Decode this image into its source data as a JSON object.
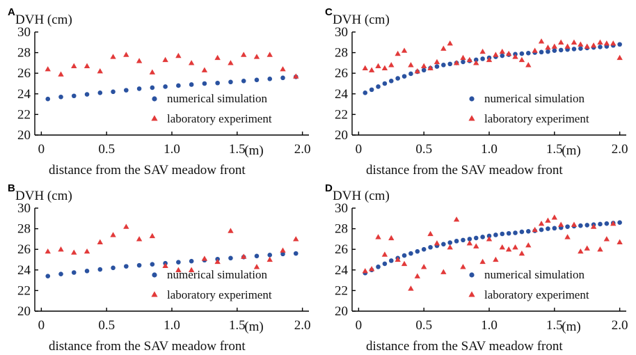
{
  "chart_data": [
    {
      "panel": "A",
      "type": "scatter",
      "ylabel": "DVH (cm)",
      "xlabel": "distance from the SAV meadow front",
      "x_unit": "(m)",
      "xlim": [
        -0.05,
        2.05
      ],
      "ylim": [
        20,
        30
      ],
      "xticks": [
        "0",
        "0.5",
        "1.0",
        "1.5",
        "2.0"
      ],
      "yticks": [
        "20",
        "22",
        "24",
        "26",
        "28",
        "30"
      ],
      "legend_position": "lower-right",
      "series": [
        {
          "name": "numerical simulation",
          "marker": "circle",
          "color": "#2a52a0",
          "x": [
            0.05,
            0.15,
            0.25,
            0.35,
            0.45,
            0.55,
            0.65,
            0.75,
            0.85,
            0.95,
            1.05,
            1.15,
            1.25,
            1.35,
            1.45,
            1.55,
            1.65,
            1.75,
            1.85,
            1.95
          ],
          "y": [
            23.5,
            23.7,
            23.8,
            23.95,
            24.1,
            24.2,
            24.35,
            24.5,
            24.6,
            24.7,
            24.8,
            24.9,
            25.0,
            25.05,
            25.15,
            25.25,
            25.35,
            25.45,
            25.55,
            25.65
          ]
        },
        {
          "name": "laboratory experiment",
          "marker": "triangle",
          "color": "#e23a3a",
          "x": [
            0.05,
            0.15,
            0.25,
            0.35,
            0.45,
            0.55,
            0.65,
            0.75,
            0.85,
            0.95,
            1.05,
            1.15,
            1.25,
            1.35,
            1.45,
            1.55,
            1.65,
            1.75,
            1.85,
            1.95
          ],
          "y": [
            26.4,
            25.9,
            26.7,
            26.7,
            26.2,
            27.6,
            27.8,
            27.2,
            26.1,
            27.3,
            27.7,
            27.0,
            26.3,
            27.5,
            27.0,
            27.8,
            27.6,
            27.8,
            26.4,
            25.7
          ]
        }
      ]
    },
    {
      "panel": "C",
      "type": "scatter",
      "ylabel": "DVH (cm)",
      "xlabel": "distance from the SAV meadow front",
      "x_unit": "(m)",
      "xlim": [
        -0.05,
        2.05
      ],
      "ylim": [
        20,
        30
      ],
      "xticks": [
        "0",
        "0.5",
        "1.0",
        "1.5",
        "2.0"
      ],
      "yticks": [
        "20",
        "22",
        "24",
        "26",
        "28",
        "30"
      ],
      "legend_position": "lower-right",
      "series": [
        {
          "name": "numerical simulation",
          "marker": "circle",
          "color": "#2a52a0",
          "x": [
            0.05,
            0.1,
            0.15,
            0.2,
            0.25,
            0.3,
            0.35,
            0.4,
            0.45,
            0.5,
            0.55,
            0.6,
            0.65,
            0.7,
            0.75,
            0.8,
            0.85,
            0.9,
            0.95,
            1.0,
            1.05,
            1.1,
            1.15,
            1.2,
            1.25,
            1.3,
            1.35,
            1.4,
            1.45,
            1.5,
            1.55,
            1.6,
            1.65,
            1.7,
            1.75,
            1.8,
            1.85,
            1.9,
            1.95,
            2.0
          ],
          "y": [
            24.1,
            24.4,
            24.7,
            25.0,
            25.25,
            25.5,
            25.7,
            25.95,
            26.15,
            26.3,
            26.5,
            26.65,
            26.8,
            26.9,
            27.0,
            27.1,
            27.2,
            27.3,
            27.4,
            27.5,
            27.6,
            27.7,
            27.8,
            27.85,
            27.9,
            27.95,
            28.0,
            28.05,
            28.1,
            28.2,
            28.25,
            28.3,
            28.35,
            28.4,
            28.45,
            28.5,
            28.55,
            28.6,
            28.7,
            28.8
          ]
        },
        {
          "name": "laboratory experiment",
          "marker": "triangle",
          "color": "#e23a3a",
          "x": [
            0.05,
            0.1,
            0.15,
            0.2,
            0.25,
            0.3,
            0.35,
            0.4,
            0.45,
            0.5,
            0.55,
            0.6,
            0.65,
            0.7,
            0.75,
            0.8,
            0.85,
            0.9,
            0.95,
            1.0,
            1.05,
            1.1,
            1.15,
            1.2,
            1.25,
            1.3,
            1.35,
            1.4,
            1.45,
            1.5,
            1.55,
            1.6,
            1.65,
            1.7,
            1.75,
            1.8,
            1.85,
            1.9,
            1.95,
            2.0
          ],
          "y": [
            26.5,
            26.3,
            26.7,
            26.5,
            26.8,
            27.9,
            28.2,
            26.8,
            26.2,
            26.7,
            26.5,
            27.1,
            28.4,
            28.9,
            27.0,
            27.5,
            27.3,
            27.0,
            28.1,
            27.3,
            27.8,
            28.1,
            27.9,
            27.6,
            27.3,
            26.8,
            28.2,
            29.1,
            28.5,
            28.6,
            29.0,
            28.6,
            29.0,
            28.8,
            28.6,
            28.7,
            29.0,
            28.9,
            28.9,
            27.5
          ]
        }
      ]
    },
    {
      "panel": "B",
      "type": "scatter",
      "ylabel": "DVH (cm)",
      "xlabel": "distance from the SAV meadow front",
      "x_unit": "(m)",
      "xlim": [
        -0.05,
        2.05
      ],
      "ylim": [
        20,
        30
      ],
      "xticks": [
        "0",
        "0.5",
        "1.0",
        "1.5",
        "2.0"
      ],
      "yticks": [
        "20",
        "22",
        "24",
        "26",
        "28",
        "30"
      ],
      "legend_position": "lower-right",
      "series": [
        {
          "name": "numerical simulation",
          "marker": "circle",
          "color": "#2a52a0",
          "x": [
            0.05,
            0.15,
            0.25,
            0.35,
            0.45,
            0.55,
            0.65,
            0.75,
            0.85,
            0.95,
            1.05,
            1.15,
            1.25,
            1.35,
            1.45,
            1.55,
            1.65,
            1.75,
            1.85,
            1.95
          ],
          "y": [
            23.4,
            23.6,
            23.75,
            23.9,
            24.05,
            24.2,
            24.35,
            24.45,
            24.55,
            24.65,
            24.75,
            24.85,
            24.95,
            25.05,
            25.15,
            25.25,
            25.35,
            25.45,
            25.55,
            25.6
          ]
        },
        {
          "name": "laboratory experiment",
          "marker": "triangle",
          "color": "#e23a3a",
          "x": [
            0.05,
            0.15,
            0.25,
            0.35,
            0.45,
            0.55,
            0.65,
            0.75,
            0.85,
            0.95,
            1.05,
            1.15,
            1.25,
            1.35,
            1.45,
            1.55,
            1.65,
            1.75,
            1.85,
            1.95
          ],
          "y": [
            25.8,
            26.0,
            25.7,
            25.8,
            26.7,
            27.4,
            28.2,
            27.0,
            27.3,
            24.4,
            24.0,
            24.0,
            25.1,
            24.8,
            27.8,
            25.3,
            24.3,
            25.0,
            25.9,
            27.0
          ]
        }
      ]
    },
    {
      "panel": "D",
      "type": "scatter",
      "ylabel": "DVH (cm)",
      "xlabel": "distance from the SAV meadow front",
      "x_unit": "(m)",
      "xlim": [
        -0.05,
        2.05
      ],
      "ylim": [
        20,
        30
      ],
      "xticks": [
        "0",
        "0.5",
        "1.0",
        "1.5",
        "2.0"
      ],
      "yticks": [
        "20",
        "22",
        "24",
        "26",
        "28",
        "30"
      ],
      "legend_position": "lower-right",
      "series": [
        {
          "name": "numerical simulation",
          "marker": "circle",
          "color": "#2a52a0",
          "x": [
            0.05,
            0.1,
            0.15,
            0.2,
            0.25,
            0.3,
            0.35,
            0.4,
            0.45,
            0.5,
            0.55,
            0.6,
            0.65,
            0.7,
            0.75,
            0.8,
            0.85,
            0.9,
            0.95,
            1.0,
            1.05,
            1.1,
            1.15,
            1.2,
            1.25,
            1.3,
            1.35,
            1.4,
            1.45,
            1.5,
            1.55,
            1.6,
            1.65,
            1.7,
            1.75,
            1.8,
            1.85,
            1.9,
            1.95,
            2.0
          ],
          "y": [
            23.7,
            24.0,
            24.3,
            24.6,
            24.9,
            25.15,
            25.4,
            25.6,
            25.8,
            26.0,
            26.2,
            26.35,
            26.5,
            26.65,
            26.8,
            26.9,
            27.0,
            27.1,
            27.2,
            27.3,
            27.4,
            27.5,
            27.55,
            27.6,
            27.7,
            27.75,
            27.8,
            27.9,
            28.0,
            28.05,
            28.1,
            28.2,
            28.25,
            28.3,
            28.35,
            28.4,
            28.45,
            28.5,
            28.55,
            28.6
          ]
        },
        {
          "name": "laboratory experiment",
          "marker": "triangle",
          "color": "#e23a3a",
          "x": [
            0.05,
            0.1,
            0.15,
            0.2,
            0.25,
            0.3,
            0.35,
            0.4,
            0.45,
            0.5,
            0.55,
            0.6,
            0.65,
            0.7,
            0.75,
            0.8,
            0.85,
            0.9,
            0.95,
            1.0,
            1.05,
            1.1,
            1.15,
            1.2,
            1.25,
            1.3,
            1.35,
            1.4,
            1.45,
            1.5,
            1.55,
            1.6,
            1.65,
            1.7,
            1.75,
            1.8,
            1.85,
            1.9,
            1.95,
            2.0
          ],
          "y": [
            23.9,
            24.1,
            27.2,
            25.5,
            27.1,
            25.0,
            24.6,
            22.2,
            23.4,
            24.3,
            27.5,
            26.6,
            23.8,
            26.2,
            28.9,
            24.3,
            26.6,
            26.3,
            24.8,
            27.0,
            25.0,
            26.2,
            26.0,
            26.2,
            25.6,
            26.4,
            27.9,
            28.5,
            28.8,
            29.1,
            28.4,
            27.2,
            28.4,
            25.8,
            26.1,
            28.2,
            26.0,
            27.0,
            28.5,
            26.7
          ]
        }
      ]
    }
  ]
}
